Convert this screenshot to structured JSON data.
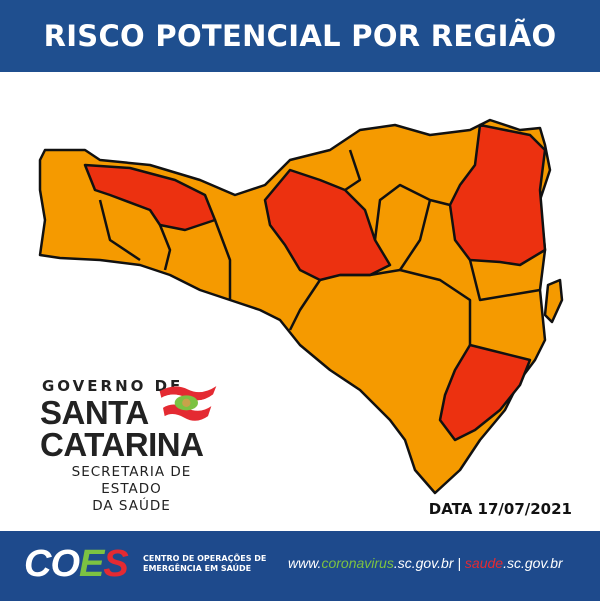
{
  "header": {
    "title": "RISCO POTENCIAL POR REGIÃO"
  },
  "colors": {
    "alto": "#f59a00",
    "gravissimo": "#ec3110",
    "header": "#1f4f8f"
  },
  "logo": {
    "line1": "GOVERNO DE",
    "line2": "SANTA",
    "line3": "CATARINA",
    "line4": "SECRETARIA DE ESTADO",
    "line5": "DA SAÚDE"
  },
  "date": "DATA 17/07/2021",
  "footer": {
    "coes_c": "CO",
    "coes_e": "E",
    "coes_s": "S",
    "coes_sub1": "CENTRO DE OPERAÇÕES DE",
    "coes_sub2": "EMERGÊNCIA EM SAÚDE",
    "url1_pre": "www.",
    "url1_mid": "coronavirus",
    "url1_post": ".sc.gov.br | ",
    "url2_mid": "saude",
    "url2_post": ".sc.gov.br"
  }
}
